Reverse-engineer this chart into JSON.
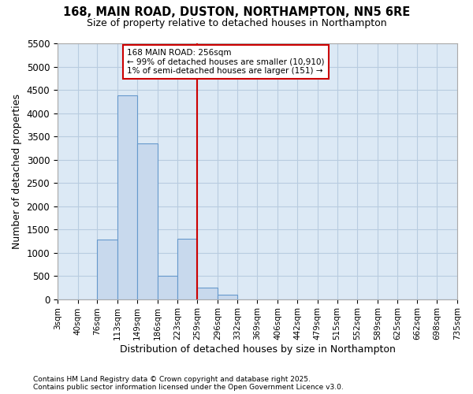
{
  "title1": "168, MAIN ROAD, DUSTON, NORTHAMPTON, NN5 6RE",
  "title2": "Size of property relative to detached houses in Northampton",
  "xlabel": "Distribution of detached houses by size in Northampton",
  "ylabel": "Number of detached properties",
  "footnote1": "Contains HM Land Registry data © Crown copyright and database right 2025.",
  "footnote2": "Contains public sector information licensed under the Open Government Licence v3.0.",
  "bar_edges": [
    3,
    40,
    76,
    113,
    149,
    186,
    223,
    259,
    296,
    332,
    369,
    406,
    442,
    479,
    515,
    552,
    589,
    625,
    662,
    698,
    735
  ],
  "bar_heights": [
    0,
    0,
    1280,
    4380,
    3350,
    500,
    1300,
    250,
    100,
    0,
    0,
    0,
    0,
    0,
    0,
    0,
    0,
    0,
    0,
    0
  ],
  "bar_color": "#c8d9ed",
  "bar_edgecolor": "#6699cc",
  "bg_color": "#dce9f5",
  "grid_color": "#b8cce0",
  "vline_x": 259,
  "vline_color": "#cc0000",
  "annotation_line1": "168 MAIN ROAD: 256sqm",
  "annotation_line2": "← 99% of detached houses are smaller (10,910)",
  "annotation_line3": "1% of semi-detached houses are larger (151) →",
  "annotation_box_edgecolor": "#cc0000",
  "ylim": [
    0,
    5500
  ],
  "yticks": [
    0,
    500,
    1000,
    1500,
    2000,
    2500,
    3000,
    3500,
    4000,
    4500,
    5000,
    5500
  ],
  "fig_facecolor": "#ffffff"
}
